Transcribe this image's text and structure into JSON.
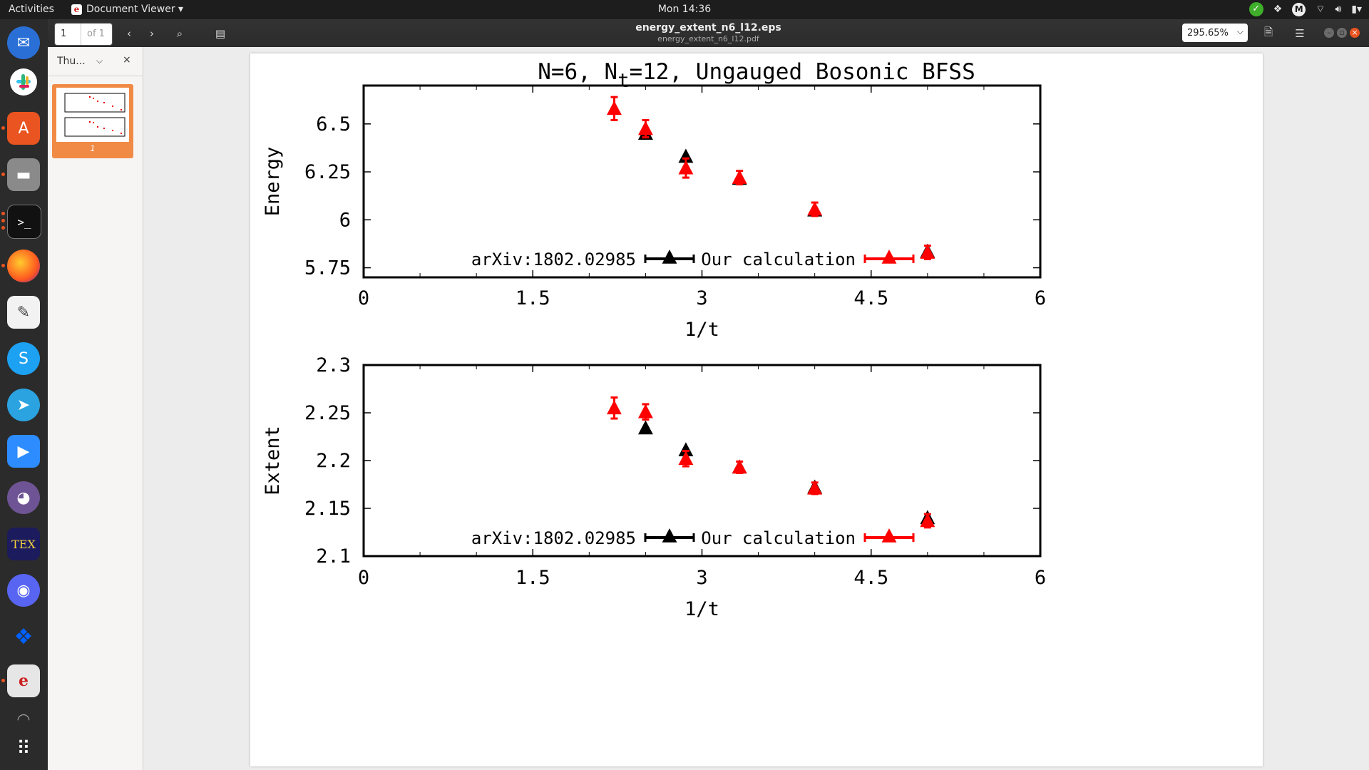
{
  "topbar": {
    "activities": "Activities",
    "app_menu": "Document Viewer ▾",
    "clock": "Mon 14:36",
    "tray_m": "M"
  },
  "dock": {
    "items": [
      "thunderbird",
      "slack",
      "software-center",
      "files",
      "terminal",
      "firefox",
      "text-editor",
      "skype",
      "telegram",
      "zoom",
      "github",
      "texmaker",
      "discord",
      "dropbox",
      "document-viewer",
      "trash",
      "show-apps"
    ]
  },
  "header": {
    "page_current": "1",
    "page_of": "of 1",
    "title": "energy_extent_n6_l12.eps",
    "subtitle": "energy_extent_n6_l12.pdf",
    "zoom": "295.65%"
  },
  "sidebar": {
    "mode_label": "Thu...",
    "thumb_page": "1"
  },
  "chart_data": [
    {
      "type": "scatter",
      "title_parts": [
        "N=6, N",
        "t",
        "=12, Ungauged Bosonic BFSS"
      ],
      "xlabel": "1/t",
      "ylabel": "Energy",
      "xlim": [
        0,
        6
      ],
      "ylim": [
        5.7,
        6.7
      ],
      "xticks": [
        "0",
        "1.5",
        "3",
        "4.5",
        "6"
      ],
      "xtick_values": [
        0,
        1.5,
        3,
        4.5,
        6
      ],
      "yticks": [
        "5.75",
        "6",
        "6.25",
        "6.5"
      ],
      "ytick_values": [
        5.75,
        6.0,
        6.25,
        6.5
      ],
      "series": [
        {
          "name": "arXiv:1802.02985",
          "color": "#000000",
          "x": [
            2.5,
            2.857,
            3.333,
            4.0,
            5.0
          ],
          "y": [
            6.45,
            6.33,
            6.215,
            6.05,
            5.835
          ]
        },
        {
          "name": "Our calculation",
          "color": "#ff0000",
          "x": [
            2.222,
            2.5,
            2.857,
            3.333,
            4.0,
            5.0
          ],
          "y": [
            6.58,
            6.475,
            6.27,
            6.22,
            6.055,
            5.83
          ],
          "yerr": [
            0.06,
            0.045,
            0.05,
            0.035,
            0.035,
            0.035
          ]
        }
      ]
    },
    {
      "type": "scatter",
      "xlabel": "1/t",
      "ylabel": "Extent",
      "xlim": [
        0,
        6
      ],
      "ylim": [
        2.1,
        2.3
      ],
      "xticks": [
        "0",
        "1.5",
        "3",
        "4.5",
        "6"
      ],
      "xtick_values": [
        0,
        1.5,
        3,
        4.5,
        6
      ],
      "yticks": [
        "2.1",
        "2.15",
        "2.2",
        "2.25",
        "2.3"
      ],
      "ytick_values": [
        2.1,
        2.15,
        2.2,
        2.25,
        2.3
      ],
      "series": [
        {
          "name": "arXiv:1802.02985",
          "color": "#000000",
          "x": [
            2.5,
            2.857,
            3.333,
            4.0,
            5.0
          ],
          "y": [
            2.234,
            2.211,
            2.193,
            2.172,
            2.14
          ]
        },
        {
          "name": "Our calculation",
          "color": "#ff0000",
          "x": [
            2.222,
            2.5,
            2.857,
            3.333,
            4.0,
            5.0
          ],
          "y": [
            2.255,
            2.251,
            2.202,
            2.193,
            2.171,
            2.137
          ],
          "yerr": [
            0.011,
            0.008,
            0.008,
            0.006,
            0.006,
            0.007
          ]
        }
      ]
    }
  ]
}
